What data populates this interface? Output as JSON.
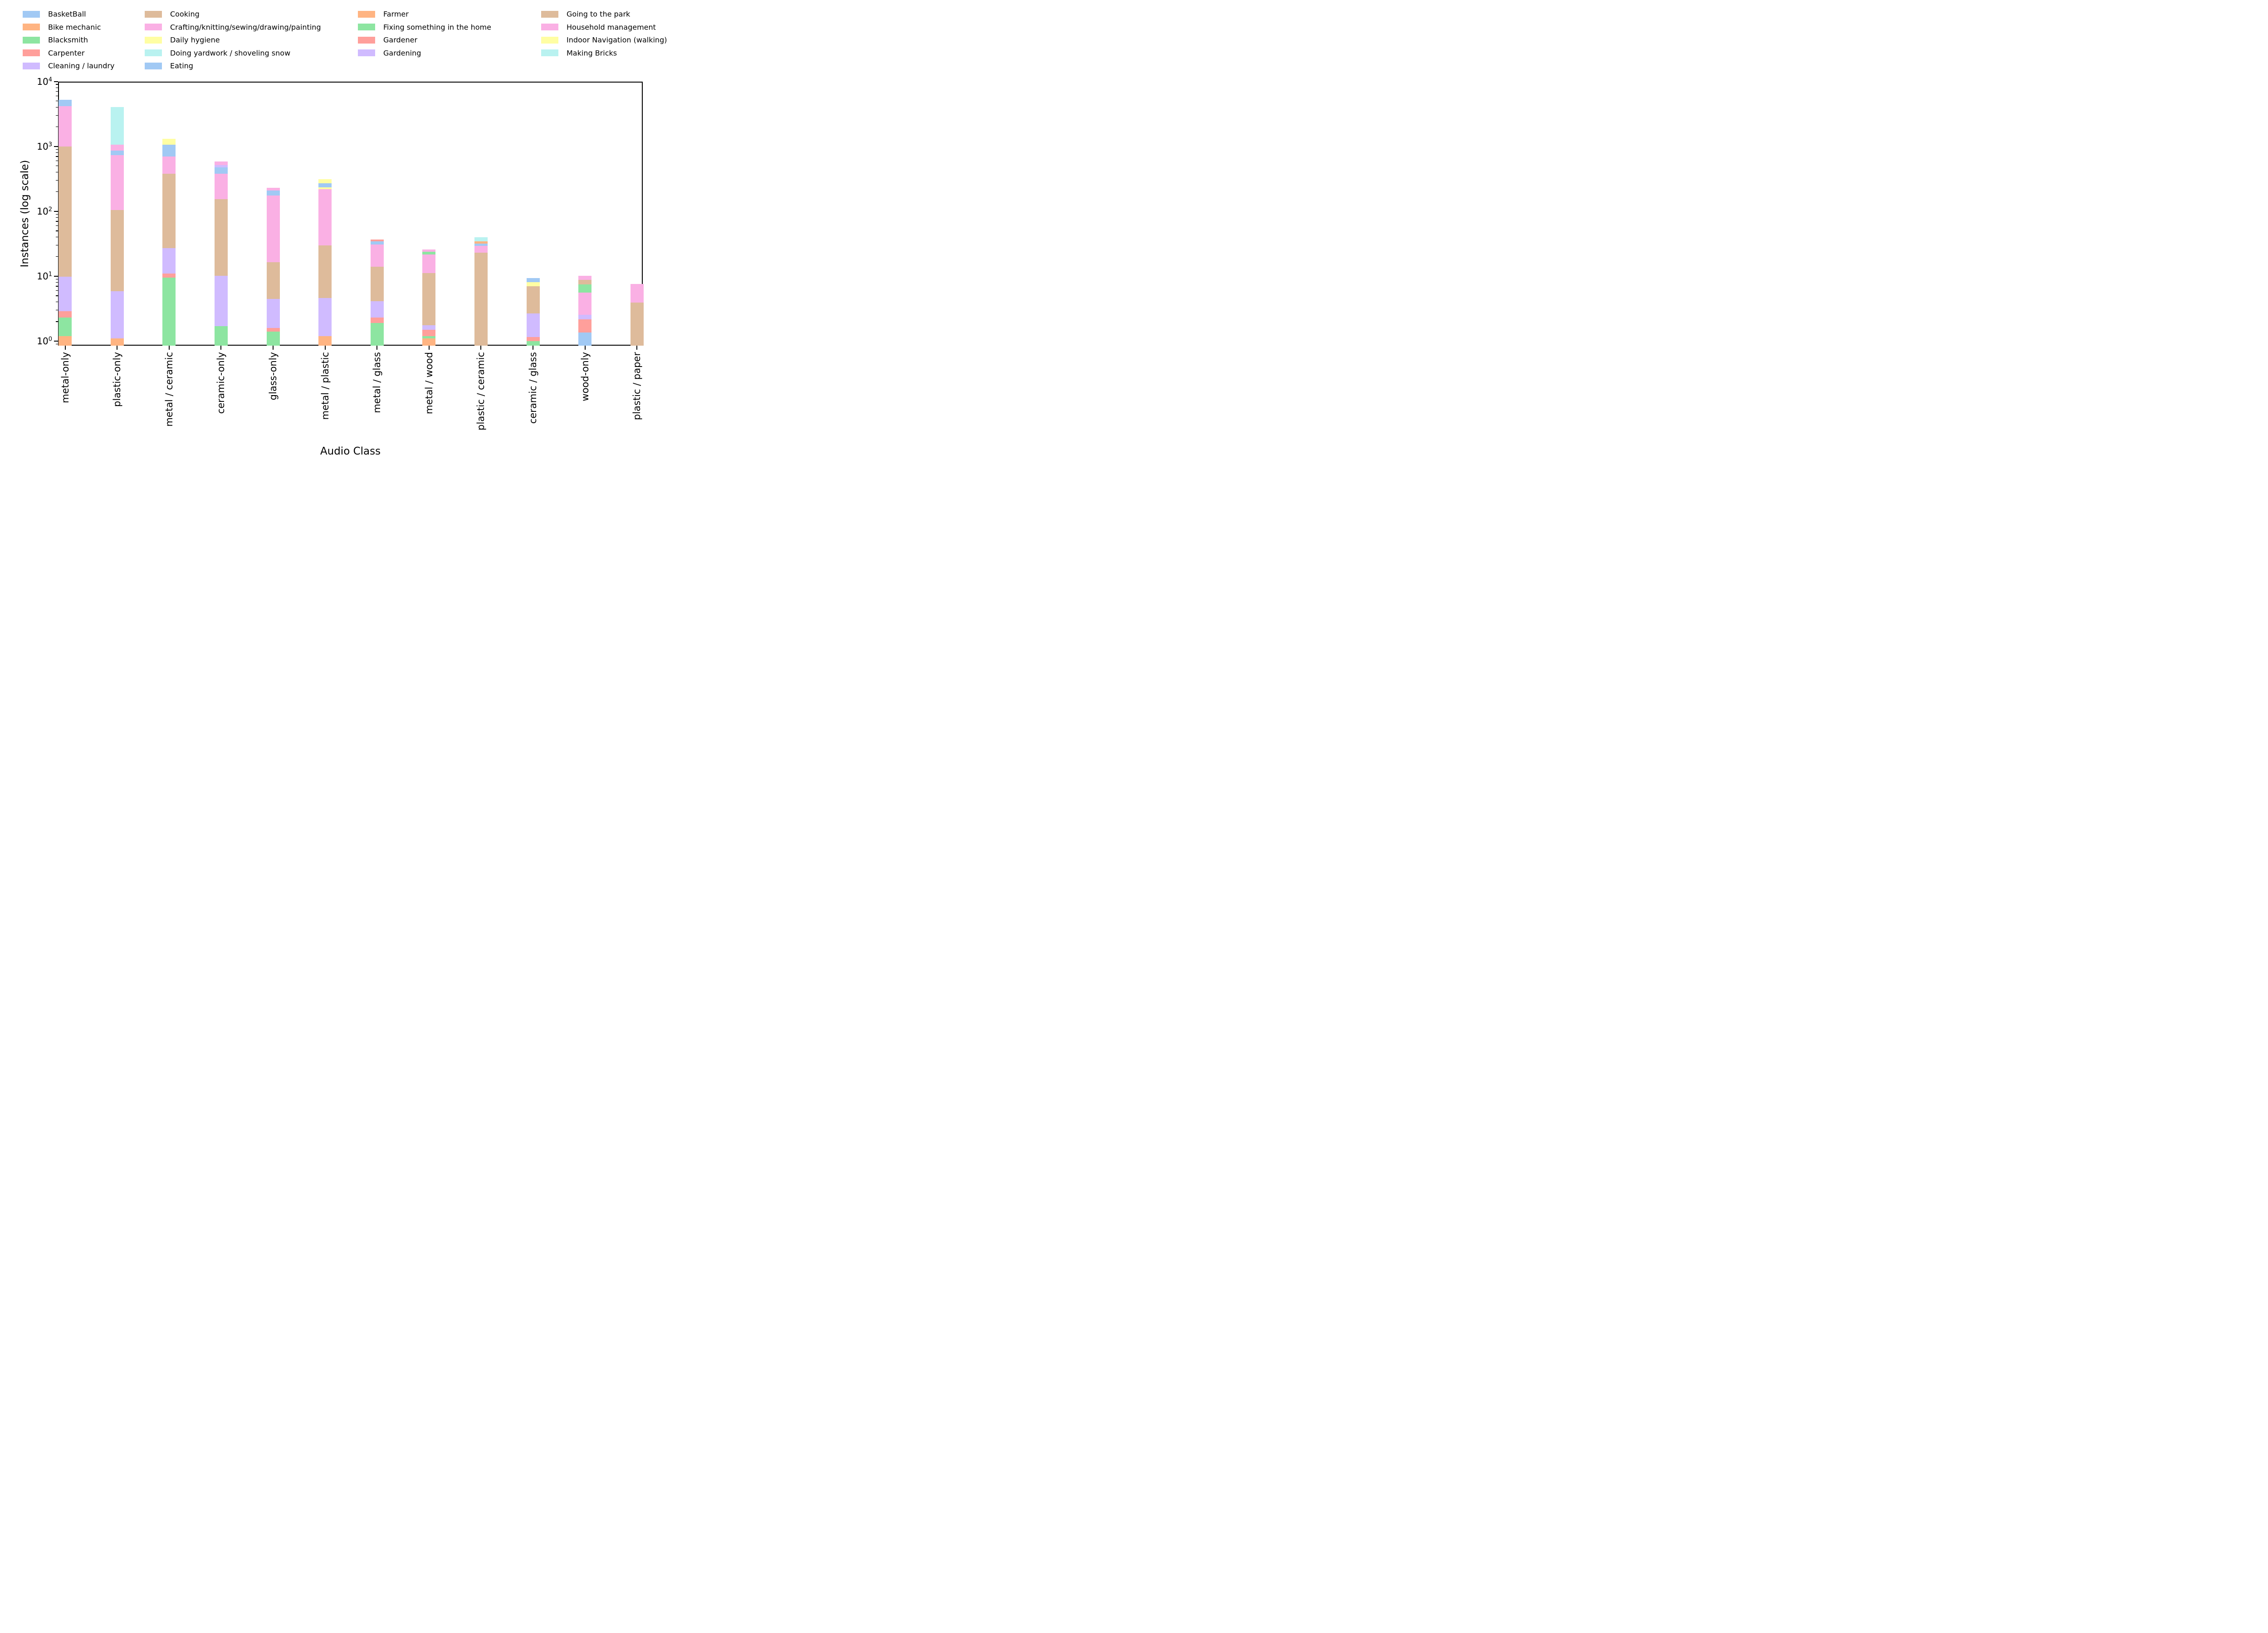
{
  "chart_data": {
    "type": "bar",
    "stacked": true,
    "orientation": "vertical",
    "yscale": "log",
    "grid": false,
    "title": "",
    "xlabel": "Audio Class",
    "ylabel": "Instances (log scale)",
    "ylim": [
      0.85,
      10000
    ],
    "ytick_labels": [
      "10^0",
      "10^1",
      "10^2",
      "10^3",
      "10^4"
    ],
    "legend_position": "top",
    "legend_columns": [
      [
        0,
        1,
        2,
        3,
        4
      ],
      [
        5,
        6,
        7,
        8,
        9
      ],
      [
        10,
        11,
        12,
        13
      ],
      [
        14,
        15,
        16,
        17
      ]
    ],
    "categories": [
      "metal-only",
      "plastic-only",
      "metal / ceramic",
      "ceramic-only",
      "glass-only",
      "metal / plastic",
      "metal / glass",
      "metal / wood",
      "plastic / ceramic",
      "ceramic / glass",
      "wood-only",
      "plastic / paper"
    ],
    "series": [
      {
        "name": "BasketBall",
        "color": "#a1c9f4",
        "values": [
          0,
          0,
          0,
          0,
          0,
          0,
          0,
          0,
          0,
          0,
          1.35,
          0
        ]
      },
      {
        "name": "Bike mechanic",
        "color": "#ffb482",
        "values": [
          1.2,
          1.1,
          0,
          0,
          0,
          1.2,
          0,
          1.1,
          0,
          0,
          0,
          0
        ]
      },
      {
        "name": "Blacksmith",
        "color": "#8de5a1",
        "values": [
          1.1,
          0,
          9.5,
          1.7,
          1.4,
          0,
          1.9,
          0.1,
          0,
          1,
          0,
          0
        ]
      },
      {
        "name": "Carpenter",
        "color": "#ff9f9b",
        "values": [
          0.6,
          0,
          1.5,
          0,
          0.2,
          0,
          0.4,
          0.3,
          0,
          0.15,
          0.8,
          0
        ]
      },
      {
        "name": "Cleaning / laundry",
        "color": "#d0bbff",
        "values": [
          7,
          4.8,
          16,
          8.5,
          2.9,
          3.4,
          1.8,
          0.25,
          0,
          1.5,
          0.4,
          0
        ]
      },
      {
        "name": "Cooking",
        "color": "#debb9b",
        "values": [
          990,
          98,
          350,
          143,
          12,
          25,
          9.8,
          9.4,
          23,
          4.4,
          0,
          3.9
        ]
      },
      {
        "name": "Crafting/knitting/sewing/drawing/painting",
        "color": "#fab0e4",
        "values": [
          3190,
          625,
          316,
          228,
          159,
          188,
          17,
          10.5,
          6.2,
          0,
          3,
          3.7
        ]
      },
      {
        "name": "Daily hygiene",
        "color": "#fffea3",
        "values": [
          0,
          0,
          0,
          0,
          0,
          17,
          0,
          0,
          0,
          1.1,
          0,
          0
        ]
      },
      {
        "name": "Doing yardwork / shoveling snow",
        "color": "#b9f2f0",
        "values": [
          0,
          0,
          0,
          0,
          0,
          0,
          0,
          0,
          0,
          0,
          0,
          0
        ]
      },
      {
        "name": "Eating",
        "color": "#a1c9f4",
        "values": [
          1040,
          136,
          372,
          94,
          33,
          37,
          3.6,
          0,
          2.5,
          1.2,
          0,
          0
        ]
      },
      {
        "name": "Farmer",
        "color": "#ffb482",
        "values": [
          0,
          0,
          0,
          0,
          0,
          0,
          0,
          0,
          2.9,
          0,
          0,
          0
        ]
      },
      {
        "name": "Fixing something in the home",
        "color": "#8de5a1",
        "values": [
          0,
          0,
          0,
          0,
          0,
          0,
          0,
          2.3,
          0,
          0,
          1.9,
          0
        ]
      },
      {
        "name": "Gardener",
        "color": "#ff9f9b",
        "values": [
          0,
          0,
          0,
          0,
          0,
          0,
          2.3,
          0,
          0,
          0,
          0,
          0
        ]
      },
      {
        "name": "Gardening",
        "color": "#d0bbff",
        "values": [
          0,
          0,
          0,
          40,
          0,
          0,
          0,
          0,
          0,
          0,
          0,
          0
        ]
      },
      {
        "name": "Going to the park",
        "color": "#debb9b",
        "values": [
          0,
          0,
          0,
          0,
          0,
          0,
          0,
          0,
          0,
          0,
          1.3,
          0
        ]
      },
      {
        "name": "Household management",
        "color": "#fab0e4",
        "values": [
          0,
          200,
          0,
          70,
          21,
          0,
          0,
          1.9,
          0,
          0,
          1.4,
          0
        ]
      },
      {
        "name": "Indoor Navigation (walking)",
        "color": "#fffea3",
        "values": [
          0,
          0,
          240,
          0,
          0,
          40,
          0,
          0,
          0,
          0,
          0,
          0
        ]
      },
      {
        "name": "Making Bricks",
        "color": "#b9f2f0",
        "values": [
          0,
          2945,
          0,
          0,
          0,
          0,
          0,
          0,
          5,
          0,
          0,
          0
        ]
      }
    ]
  },
  "colors": {
    "axis": "#000000",
    "background": "#ffffff",
    "text": "#000000"
  }
}
